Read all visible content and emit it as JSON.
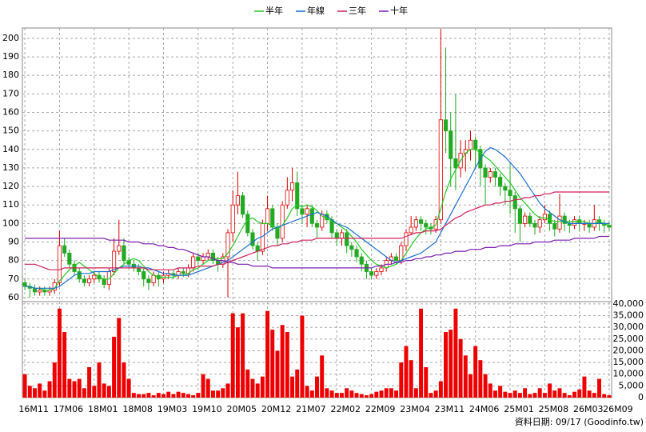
{
  "chart_data": [
    {
      "type": "candlestick",
      "categories": [
        "16M11",
        null,
        null,
        null,
        null,
        null,
        null,
        "17M06",
        null,
        null,
        null,
        null,
        null,
        null,
        "18M01",
        null,
        null,
        null,
        null,
        null,
        null,
        "18M08",
        null,
        null,
        null,
        null,
        null,
        null,
        "19M03",
        null,
        null,
        null,
        null,
        null,
        null,
        "19M10",
        null,
        null,
        null,
        null,
        null,
        null,
        "20M05",
        null,
        null,
        null,
        null,
        null,
        null,
        "20M12",
        null,
        null,
        null,
        null,
        null,
        null,
        "21M07",
        null,
        null,
        null,
        null,
        null,
        null,
        "22M02",
        null,
        null,
        null,
        null,
        null,
        null,
        "22M09",
        null,
        null,
        null,
        null,
        null,
        null,
        "23M04",
        null,
        null,
        null,
        null,
        null,
        null,
        "23M11",
        null,
        null,
        null,
        null,
        null,
        null,
        "24M06",
        null,
        null,
        null,
        null,
        null,
        null,
        "25M01",
        null,
        null,
        null,
        null,
        null,
        null,
        "25M08",
        null,
        null,
        null,
        null,
        null,
        null,
        "26M03",
        null,
        null,
        null,
        null,
        null,
        "26M09"
      ],
      "open": [
        68,
        66,
        65,
        63,
        64,
        63,
        64,
        68,
        88,
        84,
        78,
        74,
        70,
        68,
        70,
        72,
        70,
        67,
        74,
        85,
        88,
        80,
        78,
        76,
        74,
        70,
        68,
        72,
        70,
        72,
        73,
        72,
        74,
        73,
        76,
        82,
        80,
        82,
        84,
        80,
        78,
        82,
        95,
        110,
        115,
        105,
        95,
        88,
        85,
        100,
        108,
        98,
        92,
        110,
        118,
        122,
        108,
        105,
        108,
        100,
        98,
        105,
        102,
        95,
        92,
        95,
        88,
        86,
        82,
        78,
        74,
        72,
        74,
        76,
        80,
        82,
        80,
        88,
        95,
        98,
        102,
        100,
        98,
        97,
        102,
        156,
        150,
        135,
        130,
        138,
        140,
        145,
        140,
        130,
        125,
        128,
        125,
        120,
        118,
        115,
        108,
        100,
        104,
        100,
        98,
        102,
        105,
        100,
        97,
        104,
        100,
        99,
        102,
        100,
        100,
        98,
        102,
        100,
        99
      ],
      "high": [
        70,
        68,
        67,
        66,
        66,
        66,
        70,
        96,
        92,
        86,
        80,
        76,
        72,
        72,
        74,
        74,
        72,
        76,
        92,
        102,
        92,
        82,
        80,
        78,
        76,
        72,
        74,
        74,
        74,
        75,
        75,
        76,
        76,
        78,
        84,
        84,
        84,
        86,
        86,
        82,
        84,
        97,
        118,
        128,
        117,
        107,
        97,
        90,
        102,
        115,
        110,
        100,
        112,
        125,
        130,
        128,
        110,
        110,
        110,
        102,
        107,
        107,
        104,
        97,
        97,
        97,
        90,
        88,
        84,
        80,
        76,
        76,
        78,
        82,
        84,
        84,
        90,
        97,
        104,
        104,
        104,
        102,
        100,
        104,
        205,
        195,
        160,
        170,
        145,
        145,
        150,
        147,
        142,
        132,
        130,
        130,
        127,
        122,
        133,
        117,
        110,
        106,
        106,
        102,
        104,
        110,
        107,
        102,
        116,
        106,
        102,
        104,
        104,
        102,
        102,
        110,
        104,
        102,
        101
      ],
      "low": [
        64,
        60,
        61,
        61,
        61,
        61,
        62,
        66,
        82,
        76,
        72,
        68,
        66,
        66,
        68,
        68,
        65,
        64,
        72,
        83,
        78,
        76,
        74,
        72,
        66,
        64,
        66,
        66,
        68,
        70,
        70,
        70,
        71,
        71,
        74,
        78,
        78,
        80,
        78,
        74,
        76,
        60,
        90,
        105,
        103,
        93,
        86,
        80,
        83,
        96,
        96,
        88,
        90,
        108,
        112,
        104,
        100,
        98,
        98,
        92,
        96,
        100,
        92,
        88,
        88,
        84,
        82,
        79,
        74,
        70,
        70,
        70,
        72,
        74,
        78,
        78,
        78,
        85,
        94,
        96,
        96,
        94,
        94,
        95,
        100,
        138,
        120,
        118,
        125,
        128,
        134,
        130,
        120,
        110,
        122,
        120,
        115,
        110,
        105,
        95,
        90,
        98,
        98,
        94,
        95,
        100,
        96,
        93,
        95,
        96,
        95,
        97,
        96,
        96,
        95,
        96,
        96,
        95,
        96
      ],
      "close": [
        66,
        65,
        63,
        64,
        63,
        64,
        68,
        88,
        84,
        78,
        74,
        70,
        68,
        70,
        72,
        70,
        67,
        74,
        85,
        88,
        80,
        78,
        76,
        74,
        70,
        68,
        72,
        70,
        72,
        73,
        72,
        74,
        73,
        76,
        82,
        80,
        82,
        84,
        80,
        78,
        82,
        95,
        110,
        115,
        105,
        95,
        88,
        85,
        100,
        108,
        98,
        92,
        110,
        118,
        122,
        108,
        105,
        108,
        100,
        98,
        105,
        102,
        95,
        92,
        95,
        88,
        86,
        82,
        78,
        74,
        72,
        74,
        76,
        80,
        82,
        80,
        88,
        95,
        98,
        102,
        100,
        98,
        97,
        102,
        156,
        150,
        135,
        130,
        138,
        140,
        145,
        140,
        130,
        125,
        128,
        125,
        120,
        118,
        115,
        108,
        100,
        104,
        100,
        98,
        102,
        105,
        100,
        97,
        104,
        100,
        99,
        102,
        100,
        100,
        98,
        102,
        100,
        99,
        98
      ],
      "up_color": "#e00000",
      "down_color": "#22aa22",
      "series": [
        {
          "name": "半年",
          "color": "#22cc22",
          "values": [
            66,
            66,
            65,
            65,
            64,
            64,
            65,
            69,
            72,
            75,
            77,
            79,
            77,
            75,
            73,
            71,
            70,
            70,
            73,
            76,
            78,
            80,
            81,
            80,
            77,
            74,
            72,
            71,
            71,
            71,
            71,
            72,
            72,
            73,
            75,
            76,
            78,
            80,
            81,
            81,
            81,
            84,
            88,
            93,
            98,
            102,
            103,
            101,
            100,
            100,
            99,
            97,
            99,
            103,
            108,
            110,
            109,
            110,
            109,
            107,
            104,
            103,
            101,
            100,
            98,
            96,
            93,
            90,
            86,
            83,
            80,
            78,
            77,
            76,
            77,
            78,
            80,
            84,
            88,
            92,
            95,
            97,
            98,
            99,
            108,
            117,
            124,
            129,
            134,
            138,
            140,
            140,
            138,
            136,
            134,
            131,
            128,
            125,
            122,
            118,
            114,
            111,
            108,
            105,
            103,
            103,
            102,
            101,
            101,
            101,
            101,
            101,
            101,
            101,
            100,
            100,
            101,
            100,
            99
          ]
        },
        {
          "name": "年線",
          "color": "#1a6fd0",
          "values": [
            66,
            66,
            65,
            65,
            65,
            65,
            65,
            66,
            68,
            70,
            72,
            73,
            73,
            73,
            74,
            74,
            74,
            74,
            75,
            76,
            77,
            77,
            77,
            77,
            76,
            76,
            75,
            74,
            73,
            73,
            72,
            72,
            72,
            72,
            73,
            74,
            75,
            76,
            77,
            78,
            79,
            80,
            82,
            84,
            86,
            88,
            90,
            92,
            93,
            95,
            97,
            98,
            99,
            100,
            101,
            102,
            103,
            104,
            105,
            106,
            105,
            104,
            102,
            100,
            99,
            98,
            96,
            94,
            92,
            90,
            88,
            86,
            84,
            82,
            80,
            79,
            80,
            81,
            82,
            83,
            84,
            86,
            88,
            90,
            95,
            100,
            105,
            110,
            115,
            120,
            125,
            130,
            135,
            139,
            141,
            140,
            138,
            136,
            133,
            130,
            127,
            123,
            119,
            115,
            111,
            108,
            106,
            104,
            102,
            101,
            100,
            100,
            100,
            100,
            100,
            100,
            100,
            100,
            100
          ]
        },
        {
          "name": "三年",
          "color": "#d0205a",
          "values": [
            78,
            78,
            78,
            77,
            76,
            75,
            75,
            75,
            76,
            76,
            76,
            76,
            76,
            76,
            76,
            76,
            76,
            76,
            76,
            76,
            76,
            76,
            76,
            76,
            76,
            75,
            75,
            75,
            75,
            75,
            75,
            76,
            76,
            76,
            76,
            77,
            77,
            77,
            77,
            78,
            78,
            79,
            80,
            81,
            82,
            83,
            84,
            85,
            86,
            87,
            88,
            88,
            89,
            89,
            90,
            90,
            91,
            91,
            91,
            92,
            92,
            92,
            92,
            92,
            92,
            92,
            92,
            92,
            92,
            92,
            92,
            92,
            92,
            92,
            92,
            92,
            92,
            93,
            94,
            95,
            95,
            96,
            96,
            96,
            97,
            99,
            101,
            103,
            104,
            106,
            107,
            108,
            109,
            110,
            110,
            111,
            111,
            112,
            112,
            113,
            113,
            114,
            114,
            115,
            115,
            116,
            116,
            117,
            117,
            117,
            117,
            117,
            117,
            117,
            117,
            117,
            117,
            117,
            117
          ]
        },
        {
          "name": "十年",
          "color": "#7a1fb0",
          "values": [
            92,
            92,
            92,
            92,
            92,
            92,
            92,
            92,
            92,
            92,
            92,
            92,
            92,
            92,
            92,
            92,
            92,
            91,
            91,
            91,
            91,
            90,
            90,
            90,
            89,
            89,
            89,
            88,
            88,
            87,
            87,
            86,
            86,
            85,
            84,
            83,
            82,
            82,
            81,
            80,
            80,
            79,
            79,
            78,
            78,
            78,
            77,
            77,
            77,
            77,
            76,
            76,
            76,
            76,
            76,
            76,
            76,
            76,
            76,
            76,
            76,
            76,
            76,
            76,
            76,
            76,
            76,
            76,
            76,
            76,
            76,
            77,
            77,
            78,
            78,
            79,
            79,
            80,
            80,
            81,
            81,
            82,
            82,
            83,
            83,
            84,
            84,
            85,
            85,
            85,
            86,
            86,
            86,
            87,
            87,
            87,
            88,
            88,
            88,
            89,
            89,
            89,
            89,
            90,
            90,
            90,
            90,
            91,
            91,
            91,
            91,
            92,
            92,
            92,
            92,
            92,
            93,
            93,
            93
          ]
        }
      ],
      "ylim": [
        57.8,
        205.6
      ],
      "yticks": [
        60,
        70,
        80,
        90,
        100,
        110,
        120,
        130,
        140,
        150,
        160,
        170,
        180,
        190,
        200
      ],
      "grid": true
    },
    {
      "type": "bar",
      "color": "#ee0000",
      "values": [
        10000,
        5000,
        4000,
        6000,
        3000,
        7000,
        15000,
        38000,
        28000,
        8000,
        7000,
        8000,
        4000,
        13000,
        5000,
        15000,
        6000,
        5000,
        26000,
        34000,
        15000,
        8000,
        2000,
        1500,
        1500,
        2000,
        1000,
        2000,
        1500,
        2500,
        1500,
        2500,
        2000,
        1500,
        1000,
        2000,
        10000,
        8000,
        3000,
        3000,
        4000,
        6000,
        36000,
        30000,
        36000,
        12000,
        8000,
        6000,
        9000,
        37000,
        29000,
        20000,
        31000,
        28000,
        9000,
        12000,
        35000,
        5000,
        3000,
        9000,
        18000,
        4000,
        3000,
        2000,
        2000,
        4000,
        3000,
        2000,
        1500,
        1000,
        1500,
        2500,
        3000,
        4000,
        4000,
        3000,
        15000,
        22000,
        16000,
        4000,
        38000,
        13000,
        2000,
        3000,
        7000,
        28000,
        29000,
        38000,
        25000,
        18000,
        10000,
        22000,
        16000,
        10000,
        6000,
        3000,
        5000,
        2500,
        2000,
        3000,
        2000,
        4000,
        1500,
        2000,
        4000,
        2000,
        6000,
        3000,
        4000,
        2000,
        1000,
        2500,
        3500,
        9000,
        3000,
        2000,
        8000,
        1500,
        1000
      ],
      "ylim": [
        0,
        41000
      ],
      "yticks": [
        0,
        {
          "value": 5000,
          "label": "5,000"
        },
        {
          "value": 10000,
          "label": "10,000"
        },
        {
          "value": 15000,
          "label": "15,000"
        },
        {
          "value": 20000,
          "label": "20,000"
        },
        {
          "value": 25000,
          "label": "25,000"
        },
        {
          "value": 30000,
          "label": "30,000"
        },
        {
          "value": 35000,
          "label": "35,000"
        },
        {
          "value": 40000,
          "label": "40,000"
        }
      ],
      "grid": true,
      "annotation": "資料日期: 09/17  (Goodinfo.tw)"
    }
  ]
}
